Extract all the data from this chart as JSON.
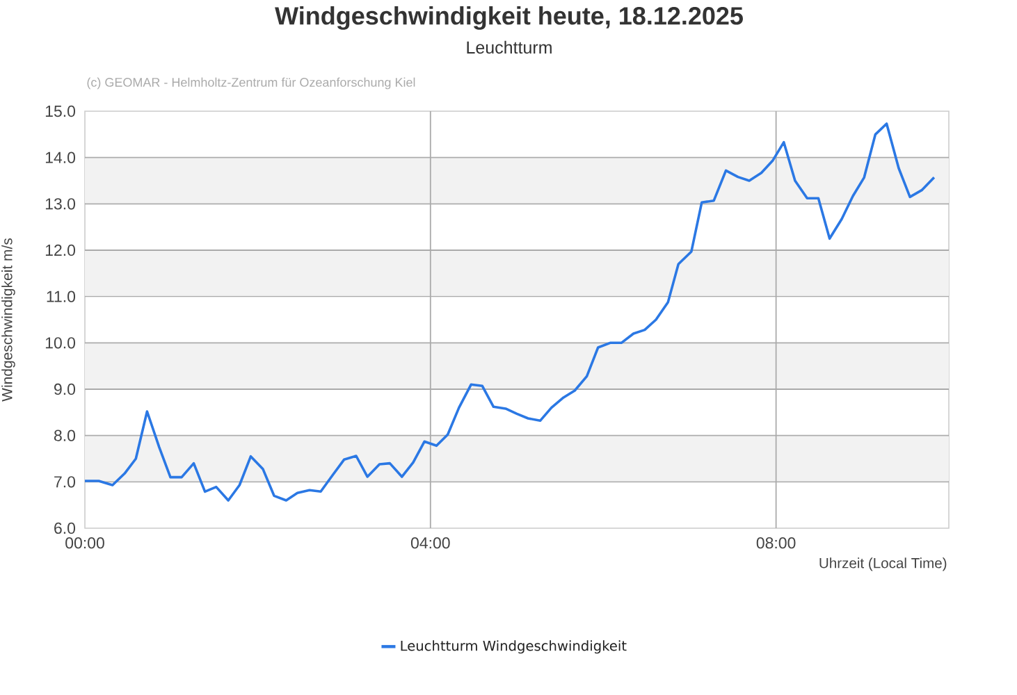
{
  "chart_data": {
    "type": "line",
    "title": "Windgeschwindigkeit heute, 18.12.2025",
    "subtitle": "Leuchtturm",
    "xlabel": "Uhrzeit (Local Time)",
    "ylabel": "Windgeschwindigkeit m/s",
    "annotations": [
      "(c) GEOMAR - Helmholtz-Zentrum für Ozeanforschung Kiel"
    ],
    "x": [
      0,
      0.16,
      0.32,
      0.46,
      0.59,
      0.72,
      0.86,
      0.99,
      1.12,
      1.26,
      1.39,
      1.52,
      1.66,
      1.79,
      1.92,
      2.06,
      2.19,
      2.33,
      2.46,
      2.6,
      2.73,
      2.87,
      3.0,
      3.14,
      3.27,
      3.41,
      3.53,
      3.67,
      3.8,
      3.93,
      4.07,
      4.2,
      4.33,
      4.47,
      4.6,
      4.73,
      4.87,
      5.0,
      5.13,
      5.27,
      5.4,
      5.54,
      5.67,
      5.81,
      5.94,
      6.08,
      6.21,
      6.35,
      6.48,
      6.61,
      6.75,
      6.87,
      7.02,
      7.14,
      7.28,
      7.42,
      7.56,
      7.69,
      7.83,
      7.96,
      8.09,
      8.22,
      8.36,
      8.49,
      8.62,
      8.76,
      8.89,
      9.02,
      9.15,
      9.28,
      9.42,
      9.55,
      9.69,
      9.83
    ],
    "series": [
      {
        "name": "Leuchtturm Windgeschwindigkeit",
        "color": "#2b78e4",
        "values": [
          7.02,
          7.02,
          6.93,
          7.18,
          7.5,
          8.52,
          7.75,
          7.1,
          7.1,
          7.4,
          6.79,
          6.89,
          6.6,
          6.93,
          7.55,
          7.28,
          6.7,
          6.6,
          6.76,
          6.82,
          6.79,
          7.15,
          7.48,
          7.56,
          7.11,
          7.38,
          7.4,
          7.11,
          7.42,
          7.87,
          7.78,
          8.02,
          8.6,
          9.1,
          9.07,
          8.62,
          8.58,
          8.47,
          8.37,
          8.32,
          8.6,
          8.82,
          8.97,
          9.28,
          9.9,
          10.0,
          10.0,
          10.2,
          10.28,
          10.5,
          10.88,
          11.7,
          11.97,
          13.03,
          13.07,
          13.72,
          13.58,
          13.5,
          13.67,
          13.93,
          14.33,
          13.5,
          13.12,
          13.12,
          12.25,
          12.67,
          13.17,
          13.57,
          14.5,
          14.73,
          13.77,
          13.15,
          13.3,
          13.57
        ]
      }
    ],
    "xlim": [
      0,
      10
    ],
    "xticks": [
      {
        "value": 0,
        "label": "00:00"
      },
      {
        "value": 4,
        "label": "04:00"
      },
      {
        "value": 8,
        "label": "08:00"
      }
    ],
    "ylim": [
      6,
      15
    ],
    "yticks": [
      {
        "value": 6,
        "label": "6.0"
      },
      {
        "value": 7,
        "label": "7.0"
      },
      {
        "value": 8,
        "label": "8.0"
      },
      {
        "value": 9,
        "label": "9.0"
      },
      {
        "value": 10,
        "label": "10.0"
      },
      {
        "value": 11,
        "label": "11.0"
      },
      {
        "value": 12,
        "label": "12.0"
      },
      {
        "value": 13,
        "label": "13.0"
      },
      {
        "value": 14,
        "label": "14.0"
      },
      {
        "value": 15,
        "label": "15.0"
      }
    ],
    "bands": [
      {
        "axis": "y",
        "from": 7,
        "to": 8,
        "color": "#f2f2f2"
      },
      {
        "axis": "y",
        "from": 9,
        "to": 10,
        "color": "#f2f2f2"
      },
      {
        "axis": "y",
        "from": 11,
        "to": 12,
        "color": "#f2f2f2"
      },
      {
        "axis": "y",
        "from": 13,
        "to": 14,
        "color": "#f2f2f2"
      }
    ],
    "grid": true,
    "legend": "bottom",
    "marker": "none",
    "line_style": "solid"
  }
}
